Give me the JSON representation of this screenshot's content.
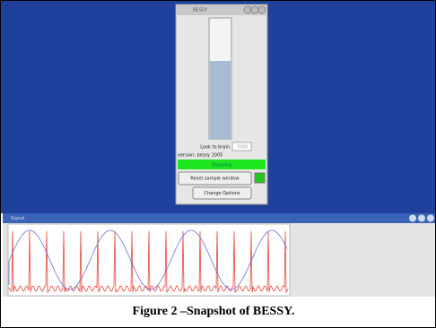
{
  "panel_window": {
    "title": "BESSY"
  },
  "gauge_label": "Look to brain",
  "gauge_input": "7000",
  "version": "version: bessy 1005",
  "status": "Stopping",
  "buttons": [
    "Reset sample window",
    "Change Options"
  ],
  "signal_window": {
    "title": "Signal"
  },
  "caption": "Figure 2 –Snapshot of BESSY."
}
